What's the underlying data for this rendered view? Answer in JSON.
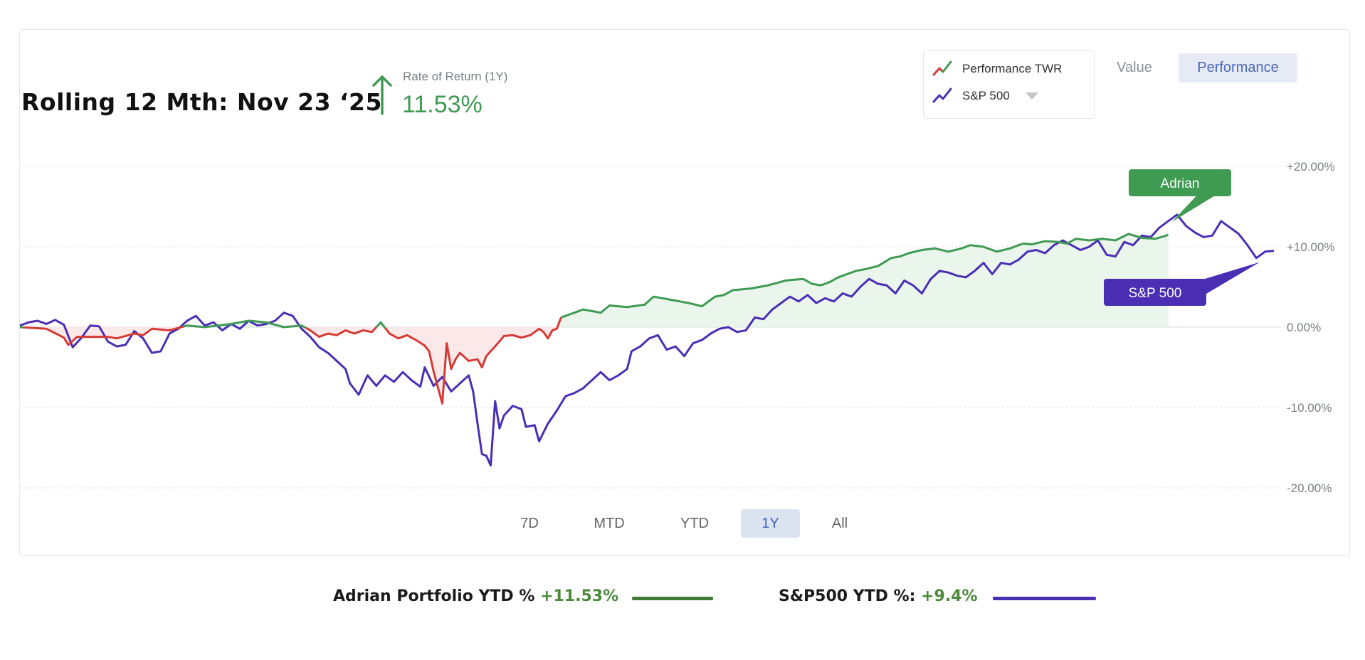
{
  "header": {
    "title": "Rolling 12 Mth: Nov 23 ‘25",
    "rate_label": "Rate of Return (1Y)",
    "rate_value": "11.53%",
    "rate_icon": "arrow-up-icon"
  },
  "legend": {
    "items": [
      {
        "label": "Performance TWR",
        "icon": "trend-line-icon",
        "colors": [
          "#d63a35",
          "#3f9a52"
        ]
      },
      {
        "label": "S&P 500",
        "icon": "trend-line-icon",
        "colors": [
          "#4a2fb5"
        ],
        "dropdown": true
      }
    ]
  },
  "view_toggle": {
    "options": [
      "Value",
      "Performance"
    ],
    "selected": "Performance"
  },
  "time_range": {
    "options": [
      "7D",
      "MTD",
      "YTD",
      "1Y",
      "All"
    ],
    "selected": "1Y"
  },
  "footer": {
    "portfolio_label": "Adrian Portfolio YTD %",
    "portfolio_value": "+11.53%",
    "sp_label": "S&P500 YTD %:",
    "sp_value": "+9.4%"
  },
  "colors": {
    "portfolio_positive": "#3f9a52",
    "portfolio_negative": "#d63a35",
    "benchmark": "#4a2fb5",
    "positive_fill": "#e8f4ea",
    "negative_fill": "#fbe7e7",
    "footer_portfolio_line": "#3f7a36",
    "footer_benchmark_line": "#4a2fb5"
  },
  "chart_data": {
    "type": "line",
    "title": "",
    "xlabel": "",
    "ylabel": "",
    "ylim": [
      -20,
      20
    ],
    "y_ticks": [
      -20,
      -10,
      0,
      10,
      20
    ],
    "y_tick_labels": [
      "-20.00%",
      "-10.00%",
      "0.00%",
      "+10.00%",
      "+20.00%"
    ],
    "grid": true,
    "x_points": 200,
    "annotations": [
      {
        "label": "Adrian",
        "series": "Performance TWR"
      },
      {
        "label": "S&P 500",
        "series": "S&P 500"
      }
    ],
    "series": [
      {
        "name": "Performance TWR",
        "keyframes": [
          [
            0,
            0
          ],
          [
            6,
            -0.2
          ],
          [
            10,
            -1.3
          ],
          [
            11,
            -2.2
          ],
          [
            13,
            -1.2
          ],
          [
            20,
            -1.2
          ],
          [
            22,
            -1.4
          ],
          [
            26,
            -0.8
          ],
          [
            28,
            -1.0
          ],
          [
            30,
            -0.2
          ],
          [
            34,
            -0.4
          ],
          [
            38,
            0.2
          ],
          [
            42,
            0
          ],
          [
            48,
            0.4
          ],
          [
            52,
            0.8
          ],
          [
            56,
            0.6
          ],
          [
            60,
            0
          ],
          [
            64,
            0.2
          ],
          [
            66,
            -0.4
          ],
          [
            68,
            -1.2
          ],
          [
            70,
            -0.8
          ],
          [
            72,
            -1.0
          ],
          [
            74,
            -0.4
          ],
          [
            76,
            -0.8
          ],
          [
            78,
            -0.4
          ],
          [
            80,
            -0.6
          ],
          [
            82,
            0.6
          ],
          [
            84,
            -0.8
          ],
          [
            86,
            -1.4
          ],
          [
            88,
            -1.0
          ],
          [
            90,
            -1.6
          ],
          [
            92,
            -2.3
          ],
          [
            93,
            -3.0
          ],
          [
            94,
            -5.5
          ],
          [
            95,
            -7.5
          ],
          [
            96,
            -9.5
          ],
          [
            97,
            -2.0
          ],
          [
            98,
            -5.2
          ],
          [
            99,
            -4.0
          ],
          [
            100,
            -3.2
          ],
          [
            102,
            -4.2
          ],
          [
            104,
            -4.0
          ],
          [
            105,
            -5.0
          ],
          [
            106,
            -3.6
          ],
          [
            108,
            -2.4
          ],
          [
            110,
            -1.1
          ],
          [
            112,
            -1.0
          ],
          [
            114,
            -1.3
          ],
          [
            116,
            -1.0
          ],
          [
            118,
            -0.2
          ],
          [
            119,
            -0.6
          ],
          [
            120,
            -1.4
          ],
          [
            121,
            -0.4
          ],
          [
            122,
            -0.2
          ],
          [
            123,
            1.2
          ],
          [
            126,
            1.8
          ],
          [
            128,
            2.2
          ],
          [
            130,
            2.0
          ],
          [
            132,
            1.8
          ],
          [
            134,
            2.7
          ],
          [
            138,
            2.5
          ],
          [
            142,
            2.8
          ],
          [
            144,
            3.8
          ],
          [
            146,
            3.6
          ],
          [
            148,
            3.4
          ],
          [
            152,
            3.0
          ],
          [
            155,
            2.6
          ],
          [
            158,
            3.8
          ],
          [
            160,
            4.0
          ],
          [
            162,
            4.6
          ],
          [
            166,
            4.8
          ],
          [
            170,
            5.2
          ],
          [
            174,
            5.8
          ],
          [
            178,
            6.0
          ],
          [
            180,
            5.4
          ],
          [
            182,
            5.2
          ],
          [
            184,
            5.6
          ],
          [
            186,
            6.2
          ],
          [
            188,
            6.6
          ],
          [
            190,
            7.0
          ],
          [
            192,
            7.2
          ],
          [
            195,
            7.6
          ],
          [
            198,
            8.6
          ],
          [
            200,
            8.8
          ],
          [
            202,
            9.2
          ],
          [
            205,
            9.6
          ],
          [
            208,
            9.8
          ],
          [
            211,
            9.4
          ],
          [
            214,
            9.8
          ],
          [
            216,
            10.2
          ],
          [
            219,
            10.0
          ],
          [
            222,
            9.4
          ],
          [
            225,
            9.8
          ],
          [
            228,
            10.4
          ],
          [
            230,
            10.3
          ],
          [
            233,
            10.7
          ],
          [
            236,
            10.6
          ],
          [
            238,
            10.4
          ],
          [
            240,
            11.0
          ],
          [
            243,
            10.8
          ],
          [
            246,
            11.0
          ],
          [
            249,
            10.8
          ],
          [
            252,
            11.6
          ],
          [
            255,
            11.1
          ],
          [
            258,
            11.0
          ],
          [
            260,
            11.3
          ],
          [
            261,
            11.5
          ]
        ],
        "pre_series_points": 261
      },
      {
        "name": "S&P 500",
        "keyframes": [
          [
            0,
            0.2
          ],
          [
            2,
            0.6
          ],
          [
            4,
            0.8
          ],
          [
            6,
            0.4
          ],
          [
            8,
            0.9
          ],
          [
            10,
            0.3
          ],
          [
            12,
            -2.5
          ],
          [
            14,
            -1.3
          ],
          [
            16,
            0.2
          ],
          [
            18,
            0.1
          ],
          [
            20,
            -1.8
          ],
          [
            22,
            -2.4
          ],
          [
            24,
            -2.2
          ],
          [
            26,
            -0.5
          ],
          [
            28,
            -1.4
          ],
          [
            30,
            -3.2
          ],
          [
            32,
            -3.0
          ],
          [
            34,
            -0.8
          ],
          [
            36,
            -0.2
          ],
          [
            38,
            0.8
          ],
          [
            40,
            1.4
          ],
          [
            42,
            0.2
          ],
          [
            44,
            0.6
          ],
          [
            46,
            -0.4
          ],
          [
            48,
            0.4
          ],
          [
            50,
            -0.2
          ],
          [
            52,
            0.8
          ],
          [
            54,
            0.2
          ],
          [
            56,
            0.4
          ],
          [
            58,
            0.8
          ],
          [
            60,
            1.8
          ],
          [
            62,
            1.4
          ],
          [
            64,
            -0.2
          ],
          [
            66,
            -1.2
          ],
          [
            68,
            -2.5
          ],
          [
            70,
            -3.2
          ],
          [
            72,
            -4.2
          ],
          [
            74,
            -5.2
          ],
          [
            75,
            -7.0
          ],
          [
            77,
            -8.4
          ],
          [
            79,
            -6.0
          ],
          [
            81,
            -7.3
          ],
          [
            83,
            -6.0
          ],
          [
            85,
            -6.8
          ],
          [
            87,
            -5.6
          ],
          [
            89,
            -6.6
          ],
          [
            91,
            -7.4
          ],
          [
            92,
            -5.0
          ],
          [
            94,
            -7.3
          ],
          [
            96,
            -6.2
          ],
          [
            98,
            -8.0
          ],
          [
            100,
            -7.0
          ],
          [
            102,
            -6.0
          ],
          [
            103,
            -8.0
          ],
          [
            104,
            -12.0
          ],
          [
            105,
            -15.8
          ],
          [
            106,
            -16.0
          ],
          [
            107,
            -17.2
          ],
          [
            108,
            -9.2
          ],
          [
            109,
            -12.6
          ],
          [
            110,
            -11.0
          ],
          [
            112,
            -9.8
          ],
          [
            114,
            -10.2
          ],
          [
            115,
            -12.4
          ],
          [
            117,
            -12.2
          ],
          [
            118,
            -14.2
          ],
          [
            120,
            -12.0
          ],
          [
            122,
            -10.4
          ],
          [
            124,
            -8.6
          ],
          [
            126,
            -8.2
          ],
          [
            128,
            -7.6
          ],
          [
            130,
            -6.6
          ],
          [
            132,
            -5.6
          ],
          [
            134,
            -6.6
          ],
          [
            136,
            -6.0
          ],
          [
            138,
            -5.2
          ],
          [
            139,
            -3.0
          ],
          [
            141,
            -2.4
          ],
          [
            143,
            -1.4
          ],
          [
            145,
            -1.0
          ],
          [
            147,
            -2.8
          ],
          [
            149,
            -2.4
          ],
          [
            151,
            -3.6
          ],
          [
            153,
            -2.0
          ],
          [
            155,
            -1.6
          ],
          [
            157,
            -0.8
          ],
          [
            159,
            -0.2
          ],
          [
            161,
            0
          ],
          [
            163,
            -0.6
          ],
          [
            165,
            -0.4
          ],
          [
            167,
            1.2
          ],
          [
            169,
            1.0
          ],
          [
            171,
            2.2
          ],
          [
            173,
            3.0
          ],
          [
            175,
            3.8
          ],
          [
            177,
            3.2
          ],
          [
            179,
            4.0
          ],
          [
            181,
            3.0
          ],
          [
            183,
            3.6
          ],
          [
            185,
            3.2
          ],
          [
            187,
            4.2
          ],
          [
            189,
            3.8
          ],
          [
            191,
            5.0
          ],
          [
            193,
            6.0
          ],
          [
            195,
            5.4
          ],
          [
            197,
            5.2
          ],
          [
            199,
            4.2
          ],
          [
            201,
            5.8
          ],
          [
            203,
            5.2
          ],
          [
            205,
            4.2
          ],
          [
            207,
            6.0
          ],
          [
            209,
            7.0
          ],
          [
            211,
            6.8
          ],
          [
            213,
            6.4
          ],
          [
            215,
            6.2
          ],
          [
            217,
            7.0
          ],
          [
            219,
            8.0
          ],
          [
            221,
            6.6
          ],
          [
            223,
            8.0
          ],
          [
            225,
            7.8
          ],
          [
            227,
            8.4
          ],
          [
            229,
            9.4
          ],
          [
            231,
            9.6
          ],
          [
            233,
            9.2
          ],
          [
            235,
            10.2
          ],
          [
            237,
            10.8
          ],
          [
            239,
            10.2
          ],
          [
            241,
            9.6
          ],
          [
            243,
            10.0
          ],
          [
            245,
            10.8
          ],
          [
            247,
            9.0
          ],
          [
            249,
            8.8
          ],
          [
            251,
            10.6
          ],
          [
            253,
            10.2
          ],
          [
            255,
            11.4
          ],
          [
            257,
            11.2
          ],
          [
            259,
            12.4
          ],
          [
            261,
            13.2
          ],
          [
            263,
            14.0
          ],
          [
            265,
            12.6
          ],
          [
            267,
            11.8
          ],
          [
            269,
            11.2
          ],
          [
            271,
            11.4
          ],
          [
            273,
            13.2
          ],
          [
            275,
            12.4
          ],
          [
            277,
            11.6
          ],
          [
            279,
            10.2
          ],
          [
            281,
            8.6
          ],
          [
            283,
            9.4
          ],
          [
            285,
            9.5
          ]
        ]
      }
    ]
  }
}
